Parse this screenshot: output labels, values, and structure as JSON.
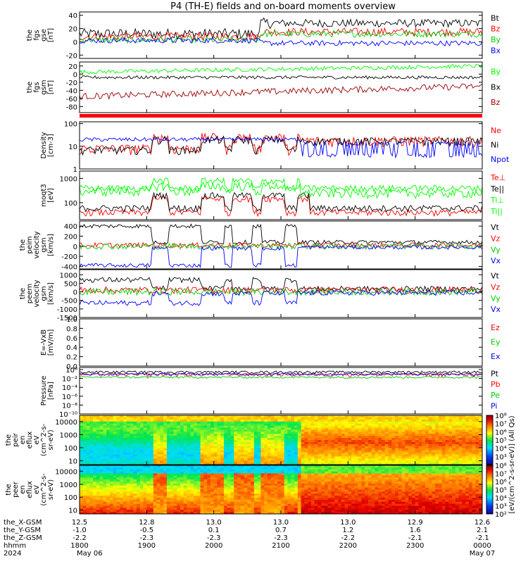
{
  "title": "P4 (TH-E) fields and on-board moments overview",
  "chart_data": {
    "type": "line",
    "panels": [
      {
        "id": "fgs-gse",
        "ylabel": [
          "the",
          "fgs",
          "gse",
          "[nT]"
        ],
        "ticks": [
          "40",
          "20",
          "0",
          "-20"
        ],
        "ylim": [
          -25,
          45
        ],
        "legend": [
          {
            "name": "Bt",
            "color": "#000000"
          },
          {
            "name": "Bz",
            "color": "#ff0000"
          },
          {
            "name": "By",
            "color": "#00cc00"
          },
          {
            "name": "Bx",
            "color": "#0000ff"
          }
        ]
      },
      {
        "id": "fgs-gsm",
        "ylabel": [
          "the",
          "fgs",
          "gsm",
          "[nT]"
        ],
        "ticks": [
          "20",
          "0",
          "-20",
          "-40",
          "-60",
          "-80"
        ],
        "ylim": [
          -95,
          30
        ],
        "legend": [
          {
            "name": "By",
            "color": "#00ff00"
          },
          {
            "name": "Bx",
            "color": "#000000"
          },
          {
            "name": "Bz",
            "color": "#990000"
          }
        ]
      },
      {
        "id": "density",
        "ylabel": [
          "Density",
          "[cm-3]"
        ],
        "ticks": [
          "100",
          "10",
          "1"
        ],
        "ylim": [
          1,
          120
        ],
        "scale": "log",
        "legend": [
          {
            "name": "Ne",
            "color": "#ff0000"
          },
          {
            "name": "Ni",
            "color": "#000000"
          },
          {
            "name": "Npot",
            "color": "#0000ff"
          }
        ]
      },
      {
        "id": "temperature",
        "ylabel": [
          "moqt3",
          "[eV]"
        ],
        "ticks": [
          "1000",
          "100"
        ],
        "ylim": [
          20,
          2000
        ],
        "scale": "log",
        "legend": [
          {
            "name": "Te⊥",
            "color": "#ff0000"
          },
          {
            "name": "Te||",
            "color": "#000000"
          },
          {
            "name": "Ti⊥",
            "color": "#00ff00"
          },
          {
            "name": "Ti||",
            "color": "#00ff00"
          }
        ]
      },
      {
        "id": "peim-velocity",
        "ylabel": [
          "the",
          "peim",
          "velocity",
          "gsm",
          "[km/s]"
        ],
        "ticks": [
          "400",
          "200",
          "0",
          "-200",
          "-400"
        ],
        "ylim": [
          -450,
          500
        ],
        "legend": [
          {
            "name": "Vt",
            "color": "#000000"
          },
          {
            "name": "Vz",
            "color": "#ff0000"
          },
          {
            "name": "Vy",
            "color": "#00cc00"
          },
          {
            "name": "Vx",
            "color": "#0000ff"
          }
        ]
      },
      {
        "id": "peem-velocity",
        "ylabel": [
          "the",
          "peem",
          "velocity",
          "gsm",
          "[km/s]"
        ],
        "ticks": [
          "1000",
          "500",
          "0",
          "-500",
          "-1000",
          "-1500"
        ],
        "ylim": [
          -1500,
          1300
        ],
        "legend": [
          {
            "name": "Vt",
            "color": "#000000"
          },
          {
            "name": "Vz",
            "color": "#ff0000"
          },
          {
            "name": "Vy",
            "color": "#00cc00"
          },
          {
            "name": "Vx",
            "color": "#0000ff"
          }
        ]
      },
      {
        "id": "efield",
        "ylabel": [
          "E=-VxB",
          "[mV/m]"
        ],
        "ticks": [
          "1.0",
          "0.8",
          "0.6",
          "0.4",
          "0.2",
          "0.0"
        ],
        "ylim": [
          0,
          1.0
        ],
        "legend": [
          {
            "name": "Ez",
            "color": "#ff0000"
          },
          {
            "name": "Ey",
            "color": "#00cc00"
          },
          {
            "name": "Ex",
            "color": "#0000ff"
          }
        ]
      },
      {
        "id": "pressure",
        "ylabel": [
          "Pressure",
          "[nPa]"
        ],
        "ticks": [
          "10⁰",
          "10⁻²",
          "10⁻⁴",
          "10⁻⁶",
          "10⁻⁸",
          "10⁻¹⁰"
        ],
        "ylim": [
          1e-10,
          3
        ],
        "scale": "log",
        "legend": [
          {
            "name": "Pt",
            "color": "#000000"
          },
          {
            "name": "Pb",
            "color": "#ff0000"
          },
          {
            "name": "Pe",
            "color": "#00cc00"
          },
          {
            "name": "Pi",
            "color": "#0000ff"
          }
        ]
      },
      {
        "id": "peir-spectrogram",
        "type": "heatmap",
        "ylabel": [
          "the",
          "peir",
          "en",
          "eflux",
          "eV",
          "(cm^2-s-",
          "sr-eV)"
        ],
        "ticks": [
          "10000",
          "1000",
          "100",
          "10"
        ],
        "ylim": [
          5,
          30000
        ],
        "scale": "log"
      },
      {
        "id": "peer-spectrogram",
        "type": "heatmap",
        "ylabel": [
          "the",
          "peer",
          "en",
          "eflux",
          "eV",
          "(cm^2-s-",
          "sr-eV)"
        ],
        "ticks": [
          "10000",
          "1000",
          "100",
          "10"
        ],
        "ylim": [
          5,
          30000
        ],
        "scale": "log"
      }
    ],
    "colorbar": {
      "ticks": [
        "10⁸",
        "10⁷",
        "10⁶",
        "10⁵",
        "10⁴",
        "10³",
        "10²"
      ],
      "label": "[eV/(cm^2-s-sr-eV)] (All Qs)",
      "range": [
        100,
        100000000
      ]
    },
    "xaxis": {
      "rows": [
        {
          "label": "the_X-GSM",
          "values": [
            "12.5",
            "12.8",
            "13.0",
            "13.0",
            "13.0",
            "12.9",
            "12.6"
          ]
        },
        {
          "label": "the_Y-GSM",
          "values": [
            "-1.0",
            "-0.5",
            "0.1",
            "0.7",
            "1.2",
            "1.6",
            "2.1"
          ]
        },
        {
          "label": "the_Z-GSM",
          "values": [
            "-2.2",
            "-2.3",
            "-2.3",
            "-2.3",
            "-2.2",
            "-2.1",
            "-2.1"
          ]
        },
        {
          "label": "hhmm",
          "values": [
            "1800",
            "1900",
            "2000",
            "2100",
            "2200",
            "2300",
            "0000"
          ]
        }
      ],
      "year": "2024",
      "start_date": "May 06",
      "end_date": "May 07",
      "hours": [
        18,
        19,
        20,
        21,
        22,
        23,
        24
      ]
    }
  }
}
